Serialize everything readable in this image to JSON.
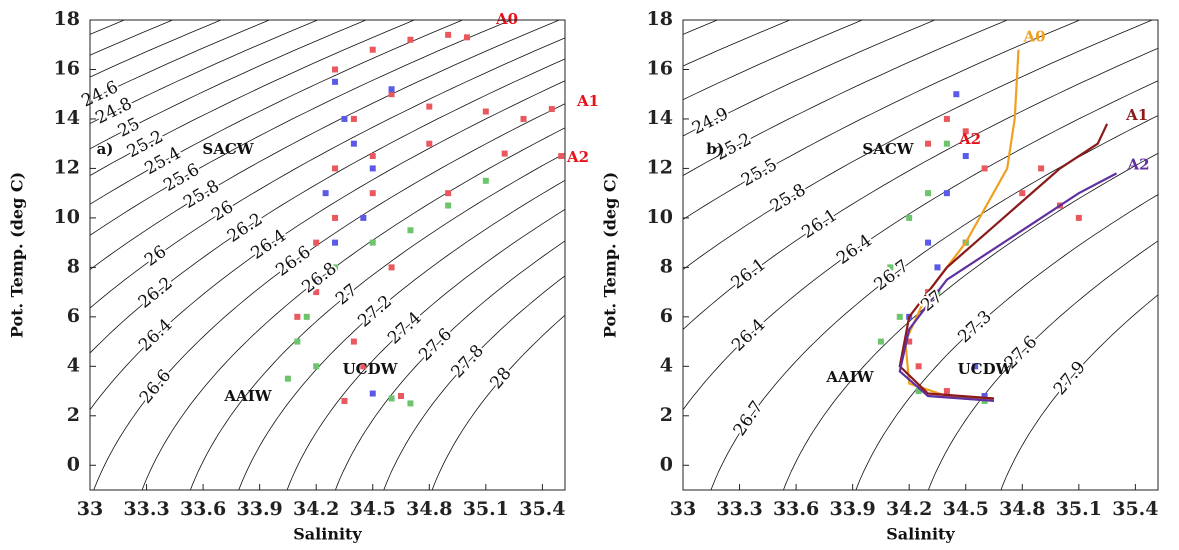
{
  "chart_data": [
    {
      "type": "scatter",
      "x_label": "Salinity",
      "y_label": "Pot. Temp. (deg C)",
      "xlim": [
        33,
        35.52
      ],
      "ylim": [
        -1,
        18
      ],
      "xticks": [
        33,
        33.3,
        33.6,
        33.9,
        34.2,
        34.5,
        34.8,
        35.1,
        35.4
      ],
      "yticks": [
        0,
        2,
        4,
        6,
        8,
        10,
        12,
        14,
        16,
        18
      ],
      "contours": [
        24,
        24.2,
        24.4,
        24.6,
        24.8,
        25,
        25.2,
        25.4,
        25.6,
        25.8,
        26,
        26.2,
        26.4,
        26.6,
        26.8,
        27,
        27.2,
        27.4,
        27.6,
        27.8,
        28
      ],
      "annotations": [
        {
          "text": "a)",
          "color": "#111111"
        },
        {
          "text": "SACW",
          "color": "#111111"
        },
        {
          "text": "AAIW",
          "color": "#111111"
        },
        {
          "text": "UCDW",
          "color": "#111111"
        },
        {
          "text": "A0",
          "color": "#e8101a"
        },
        {
          "text": "A1",
          "color": "#e8101a"
        },
        {
          "text": "A2",
          "color": "#e8101a"
        }
      ],
      "series": [
        {
          "color": "#e8585e",
          "style": "points",
          "x": [
            34.3,
            34.5,
            34.7,
            34.9,
            35.0,
            34.4,
            34.6,
            34.8,
            35.1,
            35.3,
            35.45,
            34.3,
            34.5,
            34.8,
            35.2,
            35.5,
            34.2,
            34.3,
            34.5,
            34.1,
            34.2,
            34.4,
            34.6,
            34.65,
            34.35,
            34.45,
            34.9
          ],
          "y": [
            16,
            16.8,
            17.2,
            17.4,
            17.3,
            14,
            15,
            14.5,
            14.3,
            14,
            14.4,
            12,
            12.5,
            13,
            12.6,
            12.5,
            9,
            10,
            11,
            6,
            7,
            5,
            8,
            2.8,
            2.6,
            4,
            11
          ]
        },
        {
          "color": "#5a5ae6",
          "style": "points",
          "x": [
            34.3,
            34.35,
            34.4,
            34.5,
            34.25,
            34.3,
            34.45,
            34.2,
            34.6,
            34.5
          ],
          "y": [
            15.5,
            14,
            13,
            12,
            11,
            9,
            10,
            7.5,
            15.2,
            2.9
          ]
        },
        {
          "color": "#6cc46c",
          "style": "points",
          "x": [
            34.1,
            34.15,
            34.2,
            34.3,
            34.5,
            34.7,
            34.9,
            35.1,
            34.05,
            34.6,
            34.7
          ],
          "y": [
            5,
            6,
            4,
            8,
            9,
            9.5,
            10.5,
            11.5,
            3.5,
            2.7,
            2.5
          ]
        }
      ]
    },
    {
      "type": "scatter",
      "x_label": "Salinity",
      "y_label": "Pot. Temp. (deg C)",
      "xlim": [
        33,
        35.52
      ],
      "ylim": [
        -1,
        18
      ],
      "xticks": [
        33,
        33.3,
        33.6,
        33.9,
        34.2,
        34.5,
        34.8,
        35.1,
        35.4
      ],
      "yticks": [
        0,
        2,
        4,
        6,
        8,
        10,
        12,
        14,
        16,
        18
      ],
      "contours": [
        24,
        24.3,
        24.6,
        24.9,
        25.2,
        25.5,
        25.8,
        26.1,
        26.4,
        26.7,
        27,
        27.3,
        27.6,
        27.9
      ],
      "annotations": [
        {
          "text": "b)",
          "color": "#111111"
        },
        {
          "text": "SACW",
          "color": "#111111"
        },
        {
          "text": "AAIW",
          "color": "#111111"
        },
        {
          "text": "UCDW",
          "color": "#111111"
        },
        {
          "text": "A2",
          "color": "#e8101a"
        }
      ],
      "series": [
        {
          "color": "#e8585e",
          "style": "points",
          "x": [
            34.4,
            34.5,
            34.3,
            34.6,
            34.8,
            34.9,
            35.0,
            35.1,
            34.5,
            34.3,
            34.2,
            34.4,
            34.6,
            34.25
          ],
          "y": [
            14,
            13.5,
            13,
            12,
            11,
            12,
            10.5,
            10,
            9,
            7,
            5,
            3,
            2.7,
            4
          ]
        },
        {
          "color": "#5a5ae6",
          "style": "points",
          "x": [
            34.45,
            34.5,
            34.4,
            34.3,
            34.2,
            34.55,
            34.6,
            34.35
          ],
          "y": [
            15,
            12.5,
            11,
            9,
            6,
            4,
            2.8,
            8
          ]
        },
        {
          "color": "#6cc46c",
          "style": "points",
          "x": [
            34.1,
            34.2,
            34.3,
            34.4,
            34.5,
            34.15,
            34.05,
            34.6,
            34.25,
            34.35
          ],
          "y": [
            8,
            10,
            11,
            13,
            9,
            6,
            5,
            2.6,
            3,
            7
          ]
        },
        {
          "name": "A0",
          "color": "#f0a020",
          "style": "line",
          "x": [
            34.65,
            34.4,
            34.2,
            34.18,
            34.3,
            34.5,
            34.72,
            34.76,
            34.78
          ],
          "y": [
            2.7,
            2.8,
            3.3,
            5,
            7,
            9,
            12,
            14,
            16.8
          ]
        },
        {
          "name": "A1",
          "color": "#8b1a1a",
          "style": "line",
          "x": [
            34.65,
            34.3,
            34.15,
            34.2,
            34.4,
            34.7,
            35.0,
            35.2,
            35.25
          ],
          "y": [
            2.7,
            2.9,
            4,
            6,
            8,
            10,
            12,
            13,
            13.8
          ]
        },
        {
          "name": "A2",
          "color": "#6030a0",
          "style": "line",
          "x": [
            34.65,
            34.3,
            34.15,
            34.2,
            34.4,
            34.8,
            35.1,
            35.3
          ],
          "y": [
            2.6,
            2.8,
            3.8,
            5.5,
            7.5,
            9.5,
            11,
            11.8
          ]
        }
      ]
    }
  ]
}
